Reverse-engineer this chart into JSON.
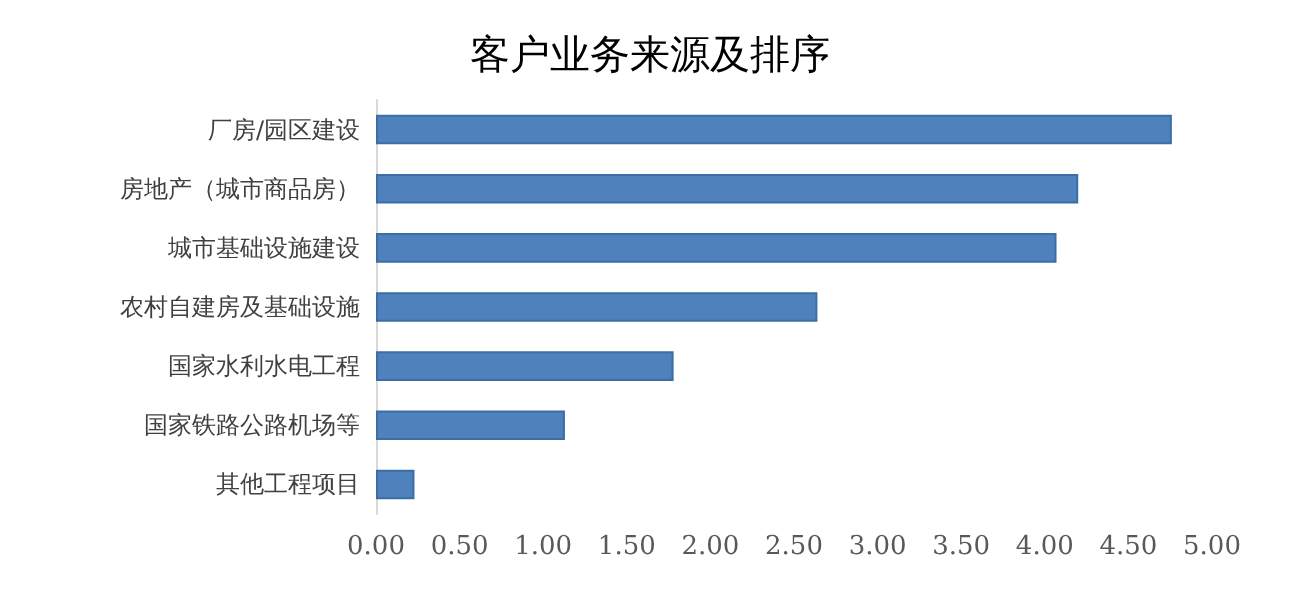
{
  "chart_data": {
    "type": "bar",
    "orientation": "horizontal",
    "title": "客户业务来源及排序",
    "categories": [
      "厂房/园区建设",
      "房地产（城市商品房）",
      "城市基础设施建设",
      "农村自建房及基础设施",
      "国家水利水电工程",
      "国家铁路公路机场等",
      "其他工程项目"
    ],
    "values": [
      4.76,
      4.2,
      4.07,
      2.64,
      1.78,
      1.13,
      0.23
    ],
    "color": "#4f81bd",
    "xlim": [
      0,
      5
    ],
    "xticks": [
      {
        "value": 0,
        "label": "0.00"
      },
      {
        "value": 0.5,
        "label": "0.50"
      },
      {
        "value": 1,
        "label": "1.00"
      },
      {
        "value": 1.5,
        "label": "1.50"
      },
      {
        "value": 2,
        "label": "2.00"
      },
      {
        "value": 2.5,
        "label": "2.50"
      },
      {
        "value": 3,
        "label": "3.00"
      },
      {
        "value": 3.5,
        "label": "3.50"
      },
      {
        "value": 4,
        "label": "4.00"
      },
      {
        "value": 4.5,
        "label": "4.50"
      },
      {
        "value": 5,
        "label": "5.00"
      }
    ],
    "grid": false
  }
}
